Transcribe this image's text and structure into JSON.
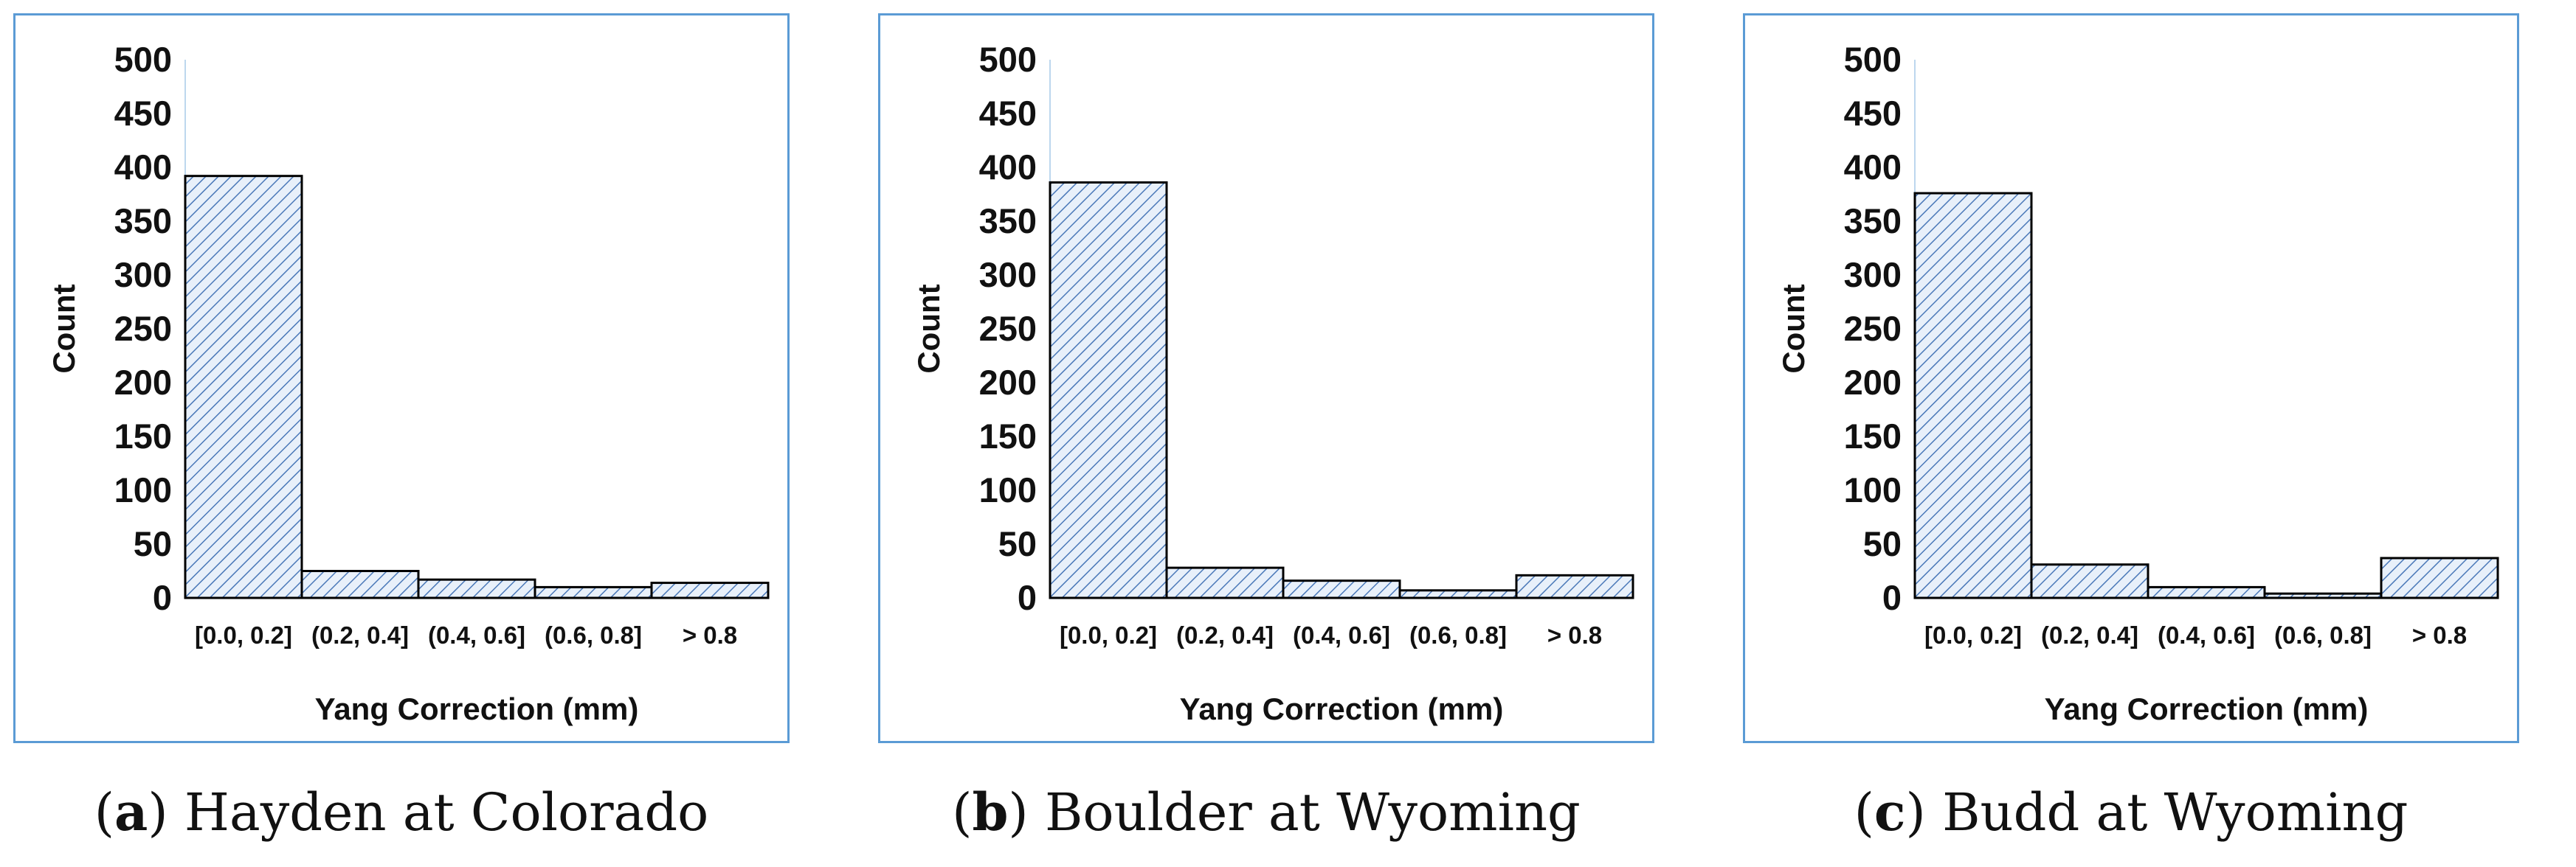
{
  "chart_data": [
    {
      "type": "bar",
      "caption_letter": "a",
      "caption_text": "Hayden at Colorado",
      "categories": [
        "[0.0, 0.2]",
        "(0.2, 0.4]",
        "(0.4, 0.6]",
        "(0.6, 0.8]",
        "> 0.8"
      ],
      "values": [
        392,
        25,
        17,
        10,
        14
      ],
      "xlabel": "Yang Correction (mm)",
      "ylabel": "Count",
      "ylim": [
        0,
        500
      ],
      "yticks": [
        0,
        50,
        100,
        150,
        200,
        250,
        300,
        350,
        400,
        450,
        500
      ],
      "grid": false,
      "bar_fill": "hatched light blue",
      "accent_color": "#5b9bd5"
    },
    {
      "type": "bar",
      "caption_letter": "b",
      "caption_text": "Boulder at Wyoming",
      "categories": [
        "[0.0, 0.2]",
        "(0.2, 0.4]",
        "(0.4, 0.6]",
        "(0.6, 0.8]",
        "> 0.8"
      ],
      "values": [
        386,
        28,
        16,
        7,
        21
      ],
      "xlabel": "Yang Correction (mm)",
      "ylabel": "Count",
      "ylim": [
        0,
        500
      ],
      "yticks": [
        0,
        50,
        100,
        150,
        200,
        250,
        300,
        350,
        400,
        450,
        500
      ],
      "grid": false,
      "bar_fill": "hatched light blue",
      "accent_color": "#5b9bd5"
    },
    {
      "type": "bar",
      "caption_letter": "c",
      "caption_text": "Budd at Wyoming",
      "categories": [
        "[0.0, 0.2]",
        "(0.2, 0.4]",
        "(0.4, 0.6]",
        "(0.6, 0.8]",
        "> 0.8"
      ],
      "values": [
        376,
        31,
        10,
        4,
        37
      ],
      "xlabel": "Yang Correction (mm)",
      "ylabel": "Count",
      "ylim": [
        0,
        500
      ],
      "yticks": [
        0,
        50,
        100,
        150,
        200,
        250,
        300,
        350,
        400,
        450,
        500
      ],
      "grid": false,
      "bar_fill": "hatched light blue",
      "accent_color": "#5b9bd5"
    }
  ]
}
